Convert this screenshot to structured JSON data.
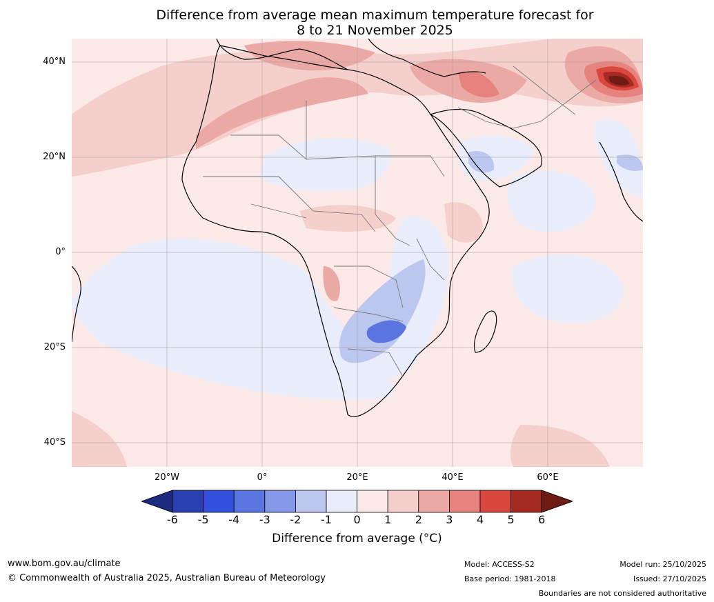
{
  "title": {
    "line1": "Difference from average mean maximum temperature forecast for",
    "line2": "8 to 21 November 2025"
  },
  "axes": {
    "lat_labels": [
      "40°N",
      "20°N",
      "0°",
      "20°S",
      "40°S"
    ],
    "lon_labels": [
      "20°W",
      "0°",
      "20°E",
      "40°E",
      "60°E"
    ]
  },
  "legend": {
    "title": "Difference from average ($^\\circ$C)",
    "title_display": "Difference from average (°C)",
    "ticks": [
      "-6",
      "-5",
      "-4",
      "-3",
      "-2",
      "-1",
      "0",
      "1",
      "2",
      "3",
      "4",
      "5",
      "6"
    ],
    "colors": [
      "#1c2a80",
      "#2a3fb0",
      "#3350de",
      "#5a74e0",
      "#8597e6",
      "#bcc7f0",
      "#e8ecfb",
      "#fbe9e8",
      "#f4cfcc",
      "#eba9a6",
      "#e6837f",
      "#d9473f",
      "#a52a22",
      "#6e1b14"
    ]
  },
  "footer": {
    "website": "www.bom.gov.au/climate",
    "copyright": "© Commonwealth of Australia 2025, Australian Bureau of Meteorology",
    "model": "Model: ACCESS-S2",
    "base_period": "Base period: 1981-2018",
    "model_run": "Model run: 25/10/2025",
    "issued": "Issued: 27/10/2025",
    "disclaimer": "Boundaries are not considered authoritative"
  }
}
